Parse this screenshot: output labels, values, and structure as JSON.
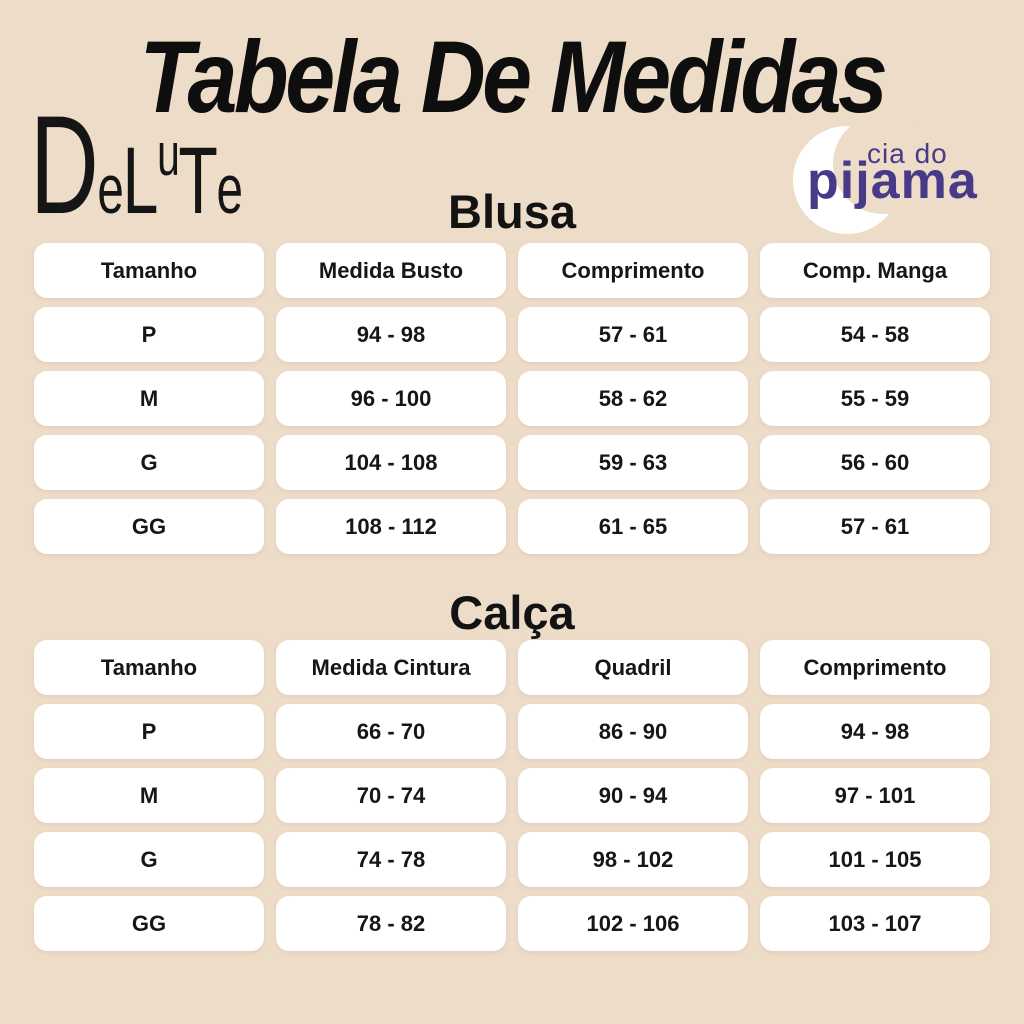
{
  "page": {
    "title": "Tabela De Medidas",
    "background_color": "#EDDCC8",
    "cell_color": "#FFFFFF",
    "text_color": "#141414"
  },
  "brand_left": {
    "name": "DeLuTe",
    "letters": [
      "D",
      "e",
      "L",
      "u",
      "T",
      "e"
    ]
  },
  "brand_right": {
    "line1": "cia do",
    "line2": "pijama",
    "color": "#483A88",
    "icon": "crescent-moon-icon"
  },
  "sections": [
    {
      "heading": "Blusa",
      "columns": [
        "Tamanho",
        "Medida Busto",
        "Comprimento",
        "Comp. Manga"
      ],
      "rows": [
        {
          "size": "P",
          "values": [
            "94 - 98",
            "57 - 61",
            "54 - 58"
          ]
        },
        {
          "size": "M",
          "values": [
            "96 - 100",
            "58 - 62",
            "55 - 59"
          ]
        },
        {
          "size": "G",
          "values": [
            "104 - 108",
            "59 - 63",
            "56 - 60"
          ]
        },
        {
          "size": "GG",
          "values": [
            "108 - 112",
            "61 - 65",
            "57 - 61"
          ]
        }
      ]
    },
    {
      "heading": "Calça",
      "columns": [
        "Tamanho",
        "Medida Cintura",
        "Quadril",
        "Comprimento"
      ],
      "rows": [
        {
          "size": "P",
          "values": [
            "66 - 70",
            "86 - 90",
            "94 - 98"
          ]
        },
        {
          "size": "M",
          "values": [
            "70 - 74",
            "90 - 94",
            "97 - 101"
          ]
        },
        {
          "size": "G",
          "values": [
            "74 - 78",
            "98 - 102",
            "101 - 105"
          ]
        },
        {
          "size": "GG",
          "values": [
            "78 - 82",
            "102 - 106",
            "103 - 107"
          ]
        }
      ]
    }
  ],
  "chart_data": [
    {
      "type": "table",
      "title": "Blusa",
      "columns": [
        "Tamanho",
        "Medida Busto",
        "Comprimento",
        "Comp. Manga"
      ],
      "rows": [
        [
          "P",
          "94 - 98",
          "57 - 61",
          "54 - 58"
        ],
        [
          "M",
          "96 - 100",
          "58 - 62",
          "55 - 59"
        ],
        [
          "G",
          "104 - 108",
          "59 - 63",
          "56 - 60"
        ],
        [
          "GG",
          "108 - 112",
          "61 - 65",
          "57 - 61"
        ]
      ]
    },
    {
      "type": "table",
      "title": "Calça",
      "columns": [
        "Tamanho",
        "Medida Cintura",
        "Quadril",
        "Comprimento"
      ],
      "rows": [
        [
          "P",
          "66 - 70",
          "86 - 90",
          "94 - 98"
        ],
        [
          "M",
          "70 - 74",
          "90 - 94",
          "97 - 101"
        ],
        [
          "G",
          "74 - 78",
          "98 - 102",
          "101 - 105"
        ],
        [
          "GG",
          "78 - 82",
          "102 - 106",
          "103 - 107"
        ]
      ]
    }
  ]
}
